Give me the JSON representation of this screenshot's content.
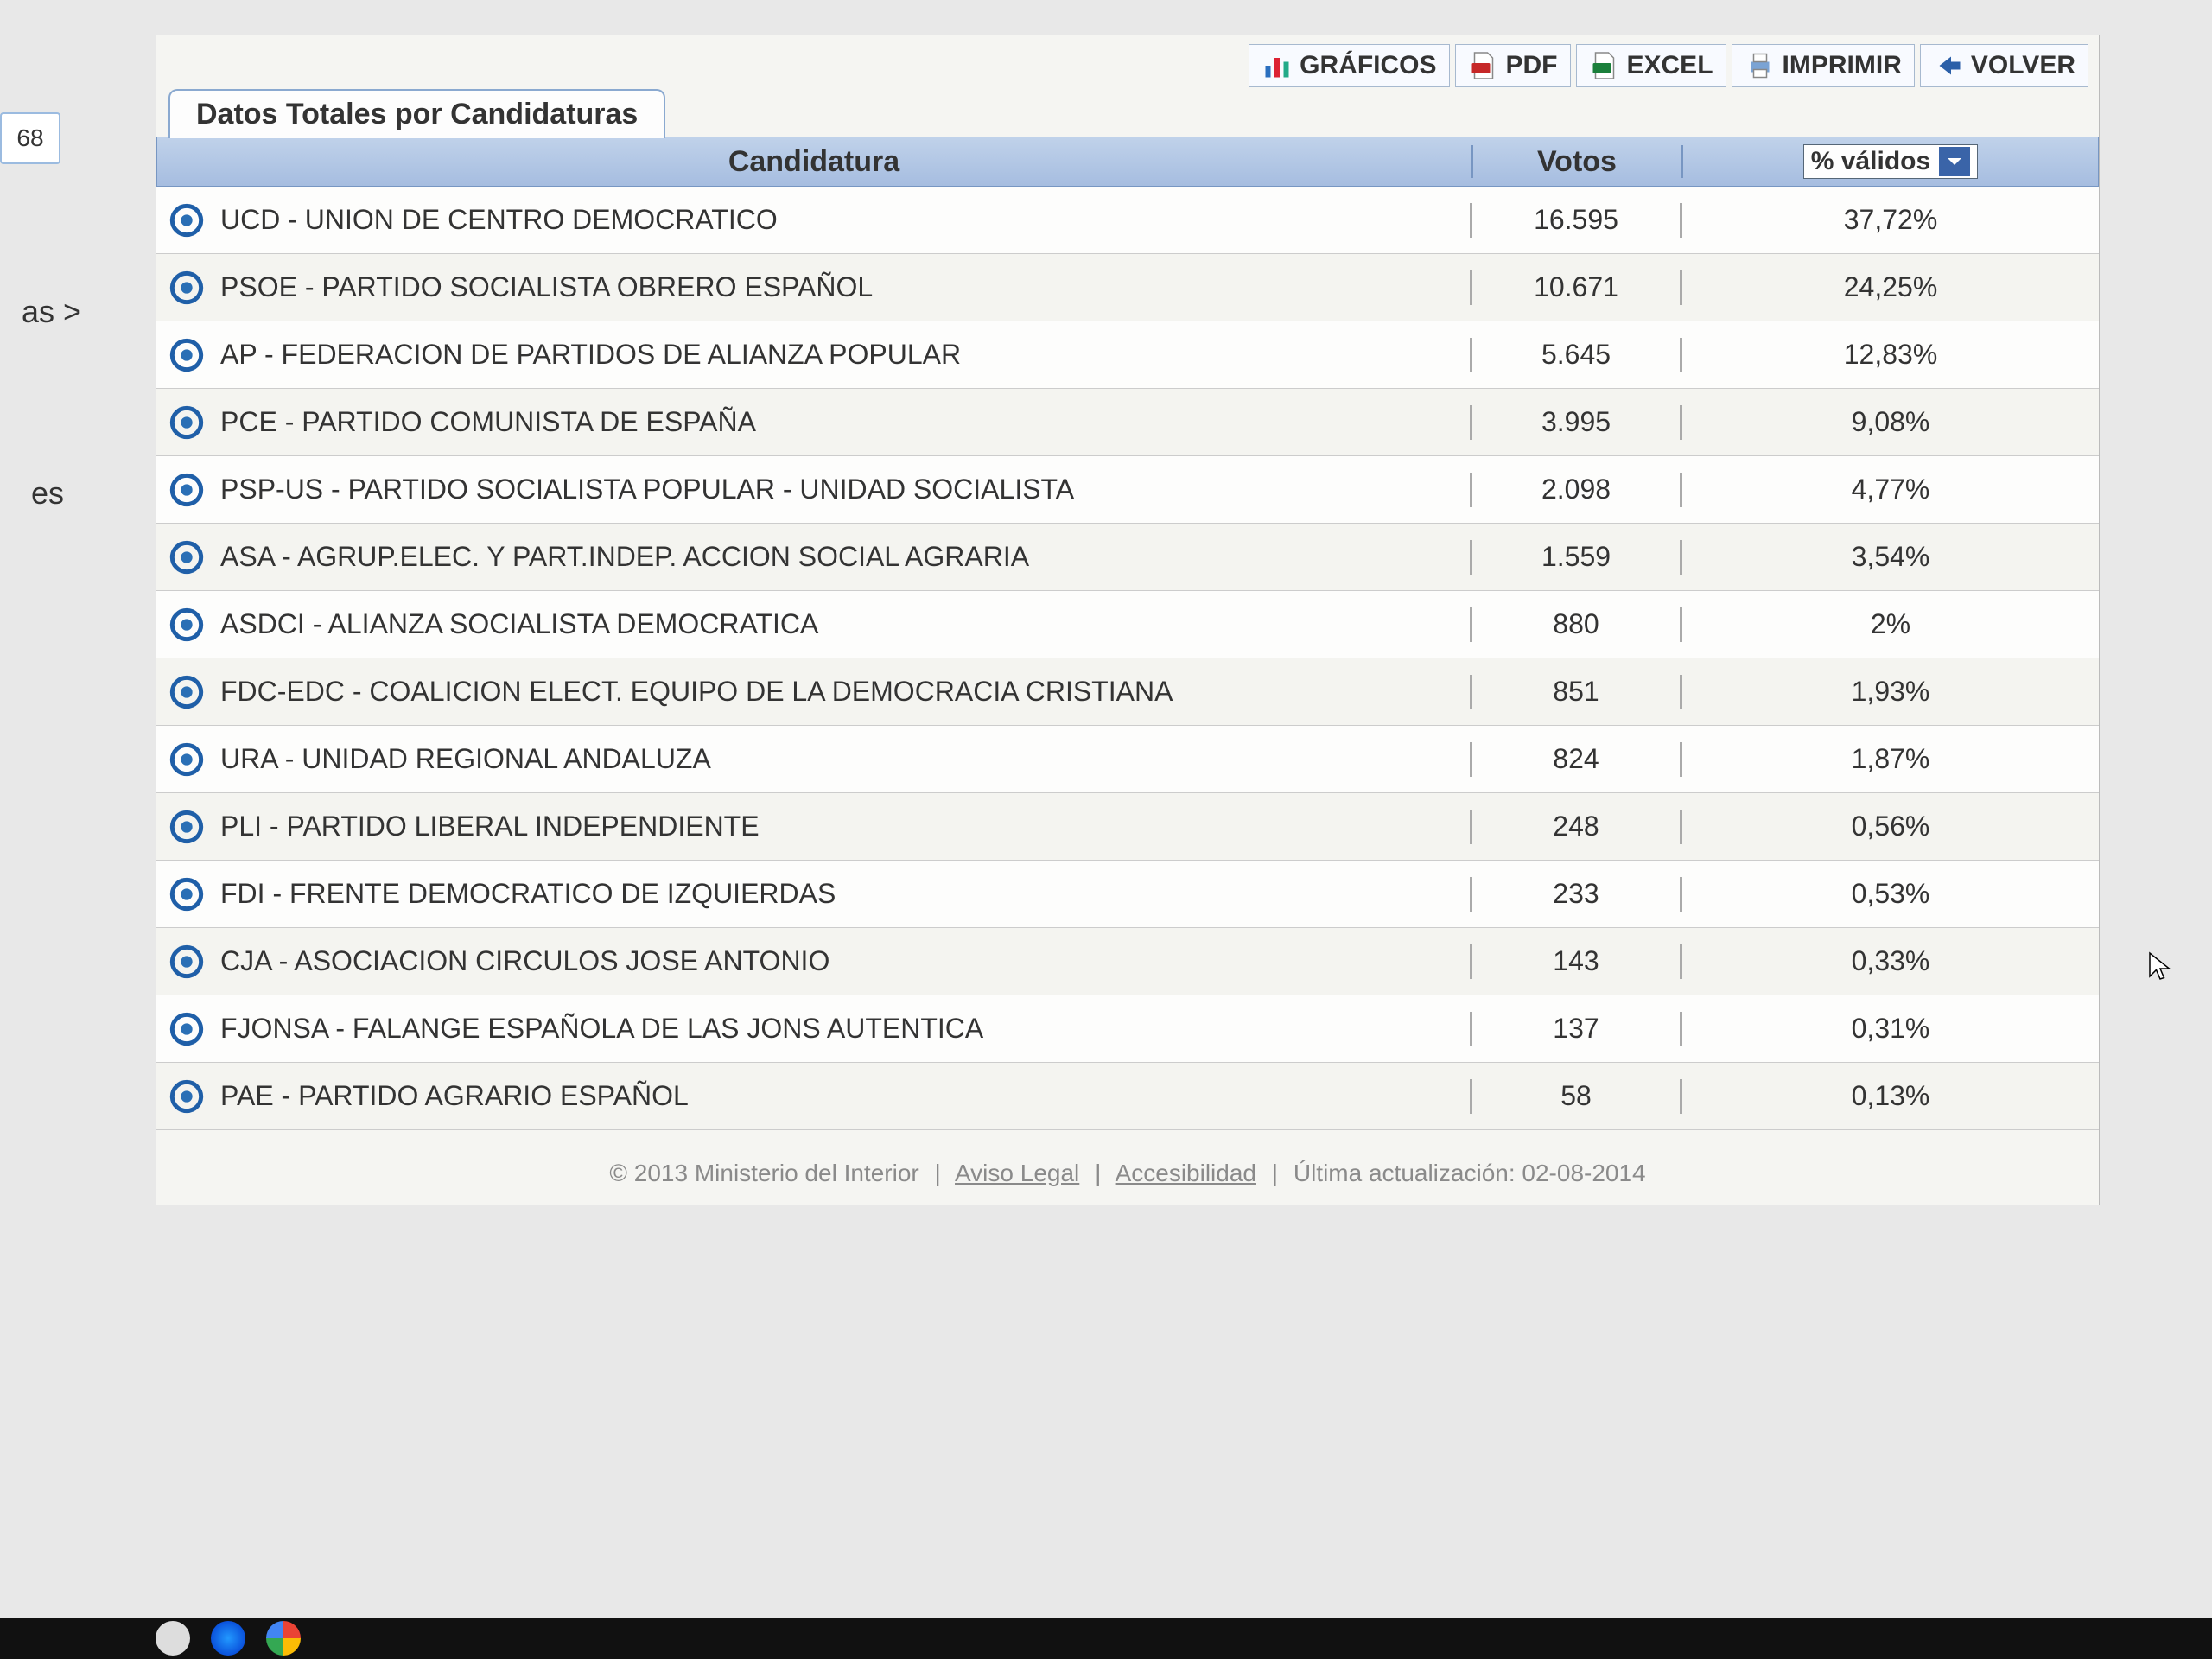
{
  "sidebar_fragments": {
    "btn": "68",
    "link1": "as >",
    "link2": "es"
  },
  "tab_title": "Datos Totales por Candidaturas",
  "toolbar": {
    "graficos": "GRÁFICOS",
    "pdf": "PDF",
    "excel": "EXCEL",
    "imprimir": "IMPRIMIR",
    "volver": "VOLVER"
  },
  "table": {
    "header_candidatura": "Candidatura",
    "header_votos": "Votos",
    "pct_selector_label": "% válidos",
    "colors": {
      "header_bg_top": "#c0d2ea",
      "header_bg_bottom": "#a6bde0",
      "header_border": "#7796c2",
      "row_even_bg": "#f4f4f0",
      "row_odd_bg": "#fdfdfc",
      "bullet_ring": "#1f5fa8",
      "bullet_dot": "#2a6fb5"
    },
    "rows": [
      {
        "name": "UCD - UNION DE CENTRO DEMOCRATICO",
        "votos": "16.595",
        "pct": "37,72%"
      },
      {
        "name": "PSOE - PARTIDO SOCIALISTA OBRERO ESPAÑOL",
        "votos": "10.671",
        "pct": "24,25%"
      },
      {
        "name": "AP - FEDERACION DE PARTIDOS DE ALIANZA POPULAR",
        "votos": "5.645",
        "pct": "12,83%"
      },
      {
        "name": "PCE - PARTIDO COMUNISTA DE ESPAÑA",
        "votos": "3.995",
        "pct": "9,08%"
      },
      {
        "name": "PSP-US - PARTIDO SOCIALISTA POPULAR - UNIDAD SOCIALISTA",
        "votos": "2.098",
        "pct": "4,77%"
      },
      {
        "name": "ASA - AGRUP.ELEC. Y PART.INDEP. ACCION SOCIAL AGRARIA",
        "votos": "1.559",
        "pct": "3,54%"
      },
      {
        "name": "ASDCI - ALIANZA SOCIALISTA DEMOCRATICA",
        "votos": "880",
        "pct": "2%"
      },
      {
        "name": "FDC-EDC - COALICION ELECT. EQUIPO DE LA DEMOCRACIA CRISTIANA",
        "votos": "851",
        "pct": "1,93%"
      },
      {
        "name": "URA - UNIDAD REGIONAL ANDALUZA",
        "votos": "824",
        "pct": "1,87%"
      },
      {
        "name": "PLI - PARTIDO LIBERAL INDEPENDIENTE",
        "votos": "248",
        "pct": "0,56%"
      },
      {
        "name": "FDI - FRENTE DEMOCRATICO DE IZQUIERDAS",
        "votos": "233",
        "pct": "0,53%"
      },
      {
        "name": "CJA - ASOCIACION CIRCULOS JOSE ANTONIO",
        "votos": "143",
        "pct": "0,33%"
      },
      {
        "name": "FJONSA - FALANGE ESPAÑOLA DE LAS JONS AUTENTICA",
        "votos": "137",
        "pct": "0,31%"
      },
      {
        "name": "PAE - PARTIDO AGRARIO ESPAÑOL",
        "votos": "58",
        "pct": "0,13%"
      }
    ]
  },
  "footer": {
    "copyright": "© 2013 Ministerio del Interior",
    "aviso": "Aviso Legal",
    "acces": "Accesibilidad",
    "updated_label": "Última actualización:",
    "updated_value": "02-08-2014"
  }
}
